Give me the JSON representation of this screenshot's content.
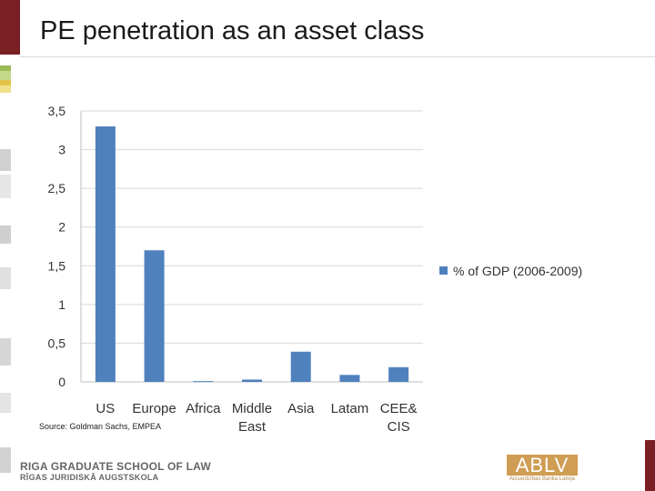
{
  "title": "PE penetration as an asset class",
  "source": "Source: Goldman Sachs, EMPEA",
  "footer": {
    "school_line1": "RIGA GRADUATE SCHOOL OF LAW",
    "school_line2": "RĪGAS JURIDISKĀ AUGSTSKOLA",
    "logo_text": "ABLV",
    "logo_subtext": "Aizsardzības Banka Latvija"
  },
  "colors": {
    "bar": "#4f81bd",
    "grid": "#d9d9d9",
    "accent": "#7a1f24"
  },
  "chart_data": {
    "type": "bar",
    "title": "",
    "xlabel": "",
    "ylabel": "",
    "categories": [
      [
        "US"
      ],
      [
        "Europe"
      ],
      [
        "Africa"
      ],
      [
        "Middle",
        "East"
      ],
      [
        "Asia"
      ],
      [
        "Latam"
      ],
      [
        "CEE&",
        "CIS"
      ]
    ],
    "series": [
      {
        "name": "% of GDP (2006-2009)",
        "values": [
          3.3,
          1.7,
          0.01,
          0.03,
          0.39,
          0.09,
          0.19
        ]
      }
    ],
    "ylim": [
      0,
      3.5
    ],
    "yticks": [
      "0",
      "0,5",
      "1",
      "1,5",
      "2",
      "2,5",
      "3",
      "3,5"
    ],
    "grid": true,
    "legend": "right"
  }
}
